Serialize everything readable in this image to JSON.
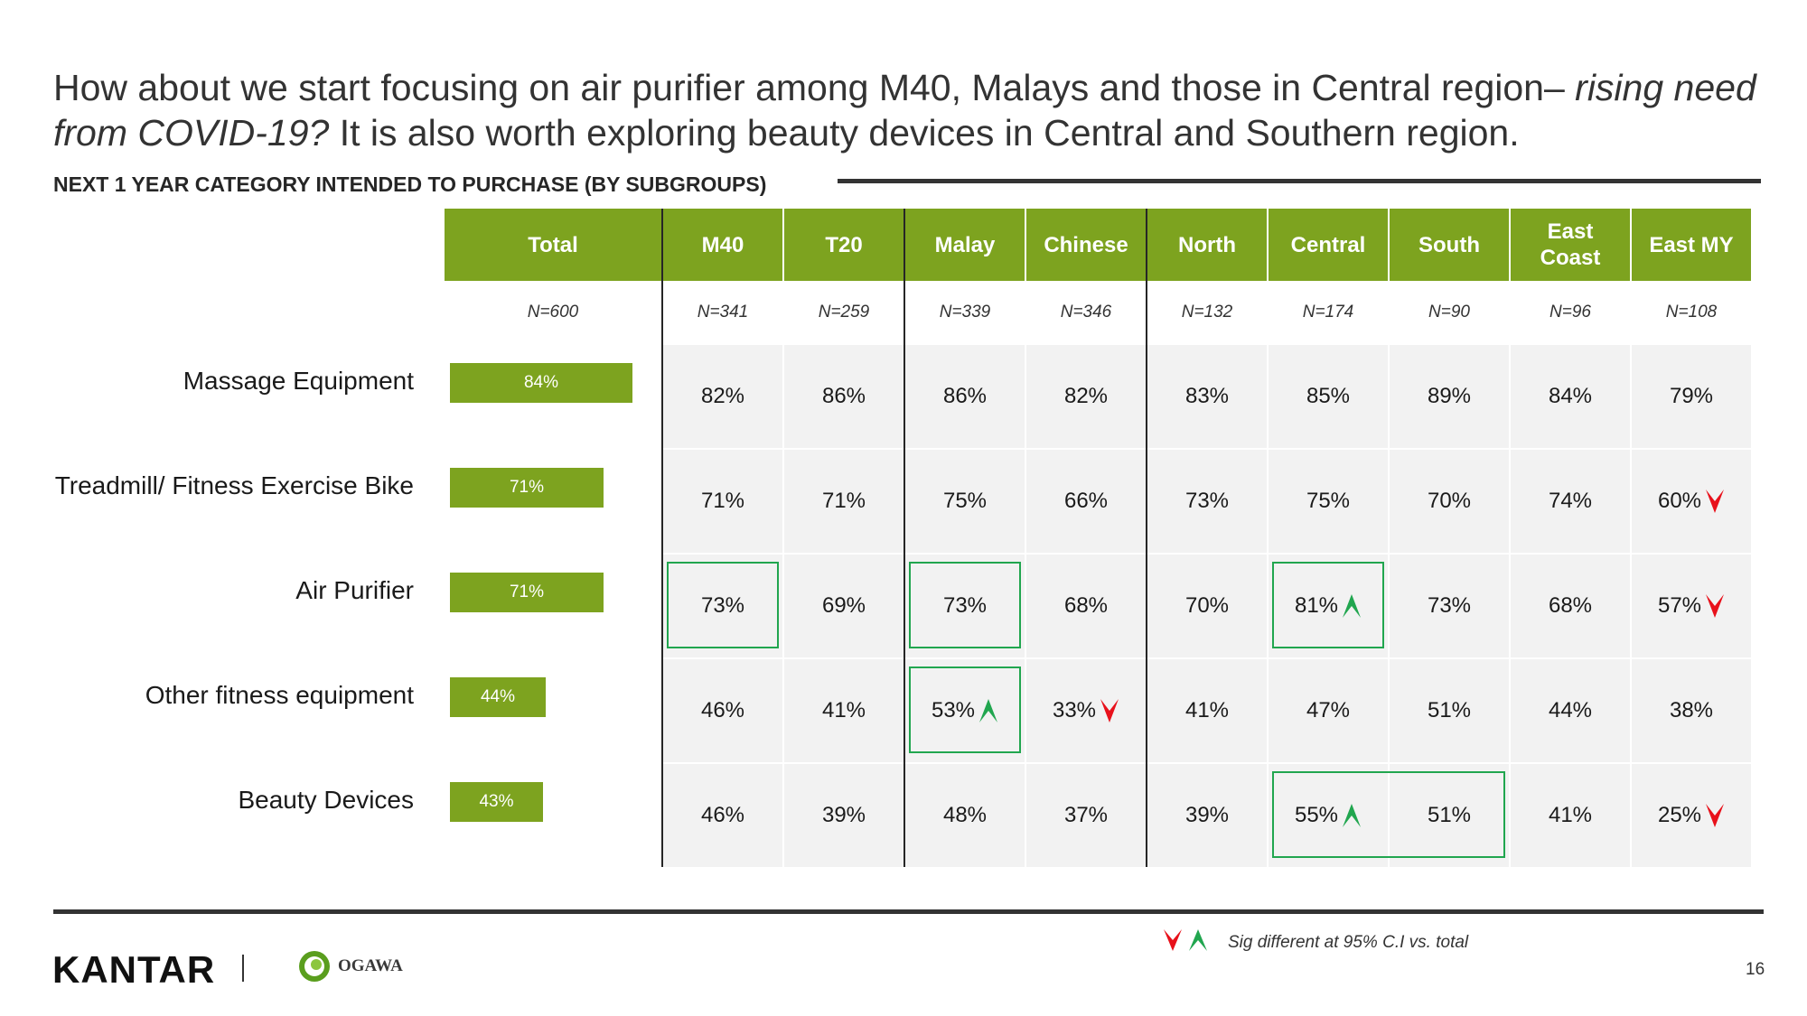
{
  "title": {
    "part1": "How about we start focusing on air purifier among M40, Malays and those in Central region– ",
    "italic1": "rising need from COVID-19?",
    "part2": " It is also worth exploring beauty devices in Central and Southern region."
  },
  "subtitle": "NEXT 1 YEAR CATEGORY INTENDED TO PURCHASE (BY SUBGROUPS)",
  "chart_data": {
    "type": "table",
    "columns": [
      {
        "label": "Total",
        "n": "N=600"
      },
      {
        "label": "M40",
        "n": "N=341"
      },
      {
        "label": "T20",
        "n": "N=259"
      },
      {
        "label": "Malay",
        "n": "N=339"
      },
      {
        "label": "Chinese",
        "n": "N=346"
      },
      {
        "label": "North",
        "n": "N=132"
      },
      {
        "label": "Central",
        "n": "N=174"
      },
      {
        "label": "South",
        "n": "N=90"
      },
      {
        "label": "East Coast",
        "n": "N=96"
      },
      {
        "label": "East MY",
        "n": "N=108"
      }
    ],
    "rows": [
      {
        "label": "Massage Equipment",
        "total": 84,
        "total_label": "84%",
        "values": [
          "82%",
          "86%",
          "86%",
          "82%",
          "83%",
          "85%",
          "89%",
          "84%",
          "79%"
        ],
        "sig": [
          null,
          null,
          null,
          null,
          null,
          null,
          null,
          null,
          null
        ]
      },
      {
        "label": "Treadmill/ Fitness Exercise Bike",
        "total": 71,
        "total_label": "71%",
        "values": [
          "71%",
          "71%",
          "75%",
          "66%",
          "73%",
          "75%",
          "70%",
          "74%",
          "60%"
        ],
        "sig": [
          null,
          null,
          null,
          null,
          null,
          null,
          null,
          null,
          "down"
        ]
      },
      {
        "label": "Air Purifier",
        "total": 71,
        "total_label": "71%",
        "values": [
          "73%",
          "69%",
          "73%",
          "68%",
          "70%",
          "81%",
          "73%",
          "68%",
          "57%"
        ],
        "sig": [
          null,
          null,
          null,
          null,
          null,
          "up",
          null,
          null,
          "down"
        ]
      },
      {
        "label": "Other fitness equipment",
        "total": 44,
        "total_label": "44%",
        "values": [
          "46%",
          "41%",
          "53%",
          "33%",
          "41%",
          "47%",
          "51%",
          "44%",
          "38%"
        ],
        "sig": [
          null,
          null,
          "up",
          "down",
          null,
          null,
          null,
          null,
          null
        ]
      },
      {
        "label": "Beauty Devices",
        "total": 43,
        "total_label": "43%",
        "values": [
          "46%",
          "39%",
          "48%",
          "37%",
          "39%",
          "55%",
          "51%",
          "41%",
          "25%"
        ],
        "sig": [
          null,
          null,
          null,
          null,
          null,
          "up",
          null,
          null,
          "down"
        ]
      }
    ],
    "highlights": [
      {
        "row": 2,
        "col_start": 0,
        "col_end": 0
      },
      {
        "row": 2,
        "col_start": 2,
        "col_end": 2
      },
      {
        "row": 2,
        "col_start": 5,
        "col_end": 5
      },
      {
        "row": 3,
        "col_start": 2,
        "col_end": 2
      },
      {
        "row": 4,
        "col_start": 5,
        "col_end": 6
      }
    ],
    "bar_max": 100
  },
  "colors": {
    "header_green": "#7da31f",
    "arrow_up": "#21a64f",
    "arrow_down": "#e8111b",
    "highlight_border": "#21a64f"
  },
  "legend": {
    "text": "Sig different at 95% C.I vs. total",
    "icons": [
      "arrow-down-icon",
      "arrow-up-icon"
    ]
  },
  "footer": {
    "brand": "KANTAR",
    "partner": "OGAWA",
    "page_number": "16"
  }
}
